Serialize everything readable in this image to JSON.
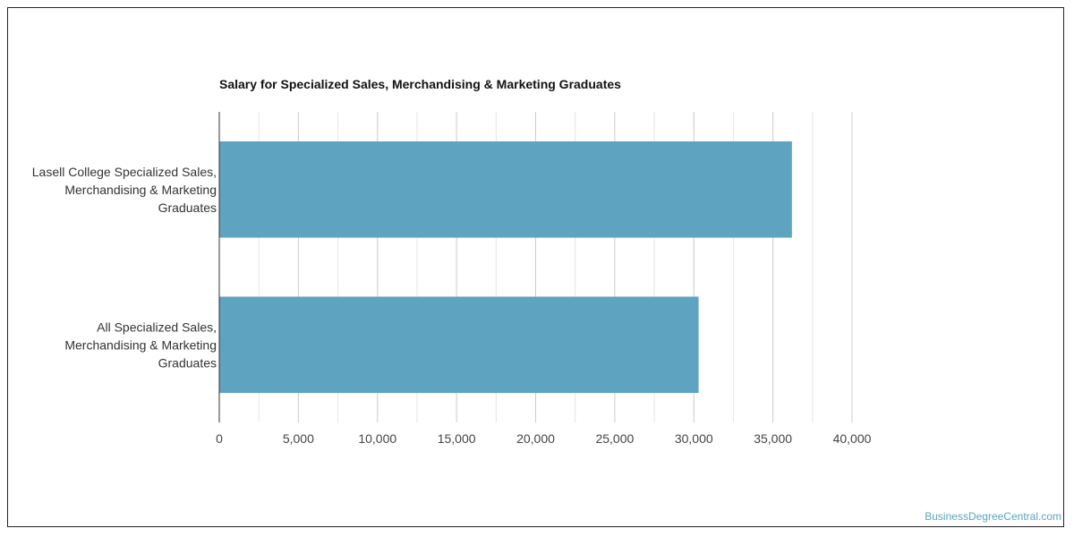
{
  "chart_data": {
    "type": "bar",
    "orientation": "horizontal",
    "title": "Salary for Specialized Sales, Merchandising & Marketing Graduates",
    "categories": [
      [
        "Lasell College Specialized Sales,",
        "Merchandising & Marketing",
        "Graduates"
      ],
      [
        "All Specialized Sales,",
        "Merchandising & Marketing",
        "Graduates"
      ]
    ],
    "values": [
      36200,
      30300
    ],
    "xlim": [
      0,
      40000
    ],
    "xticks": [
      "0",
      "5,000",
      "10,000",
      "15,000",
      "20,000",
      "25,000",
      "30,000",
      "35,000",
      "40,000"
    ],
    "xtick_values": [
      0,
      5000,
      10000,
      15000,
      20000,
      25000,
      30000,
      35000,
      40000
    ],
    "grid": true,
    "bar_color": "#5ea3bf",
    "gridline_color": "#cccccc",
    "minor_gridline_color": "#e6e6e6"
  },
  "watermark": "BusinessDegreeCentral.com"
}
